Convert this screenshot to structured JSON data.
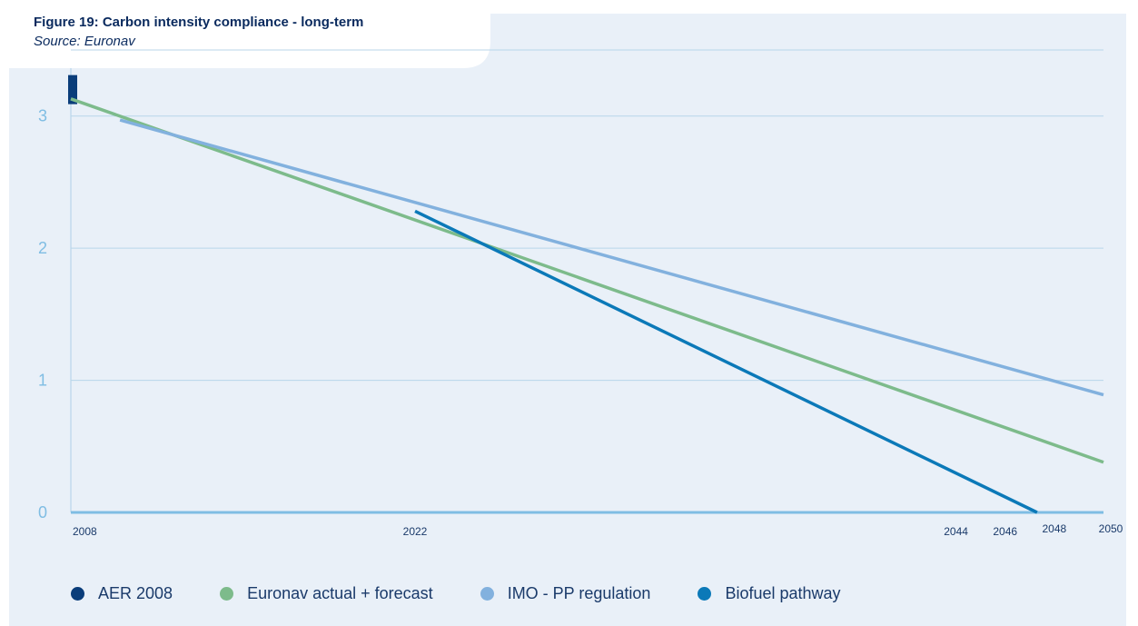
{
  "figure": {
    "title": "Figure 19: Carbon intensity compliance - long-term",
    "source": "Source: Euronav"
  },
  "legend": [
    {
      "label": "AER 2008",
      "color": "#0a3d7a"
    },
    {
      "label": "Euronav actual + forecast",
      "color": "#7dbb8b"
    },
    {
      "label": "IMO - PP regulation",
      "color": "#82b1de"
    },
    {
      "label": "Biofuel pathway",
      "color": "#0b79b8"
    }
  ],
  "colors": {
    "background": "#e9f0f8",
    "grid": "#b8d6ea",
    "axis": "#7fbde3",
    "y_tick_text": "#7fbde3",
    "x_tick_text": "#1a3a6a"
  },
  "chart_data": {
    "type": "line",
    "title": "Figure 19: Carbon intensity compliance - long-term",
    "subtitle": "Source: Euronav",
    "xlabel": "",
    "ylabel": "",
    "xlim": [
      2008,
      2050
    ],
    "ylim": [
      0,
      3.5
    ],
    "x_ticks": [
      2008,
      2022,
      2044,
      2046,
      2048,
      2050
    ],
    "y_ticks": [
      0,
      1,
      2,
      3
    ],
    "grid": true,
    "legend_position": "bottom",
    "series": [
      {
        "name": "AER 2008",
        "style": "marker",
        "color": "#0a3d7a",
        "x": [
          2008
        ],
        "y": [
          3.2
        ]
      },
      {
        "name": "Euronav actual + forecast",
        "color": "#7dbb8b",
        "x": [
          2008,
          2050
        ],
        "y": [
          3.13,
          0.38
        ]
      },
      {
        "name": "IMO - PP regulation",
        "color": "#82b1de",
        "x": [
          2010,
          2050
        ],
        "y": [
          2.97,
          0.89
        ]
      },
      {
        "name": "Biofuel pathway",
        "color": "#0b79b8",
        "x": [
          2022,
          2047.3
        ],
        "y": [
          2.28,
          0.0
        ]
      }
    ]
  }
}
